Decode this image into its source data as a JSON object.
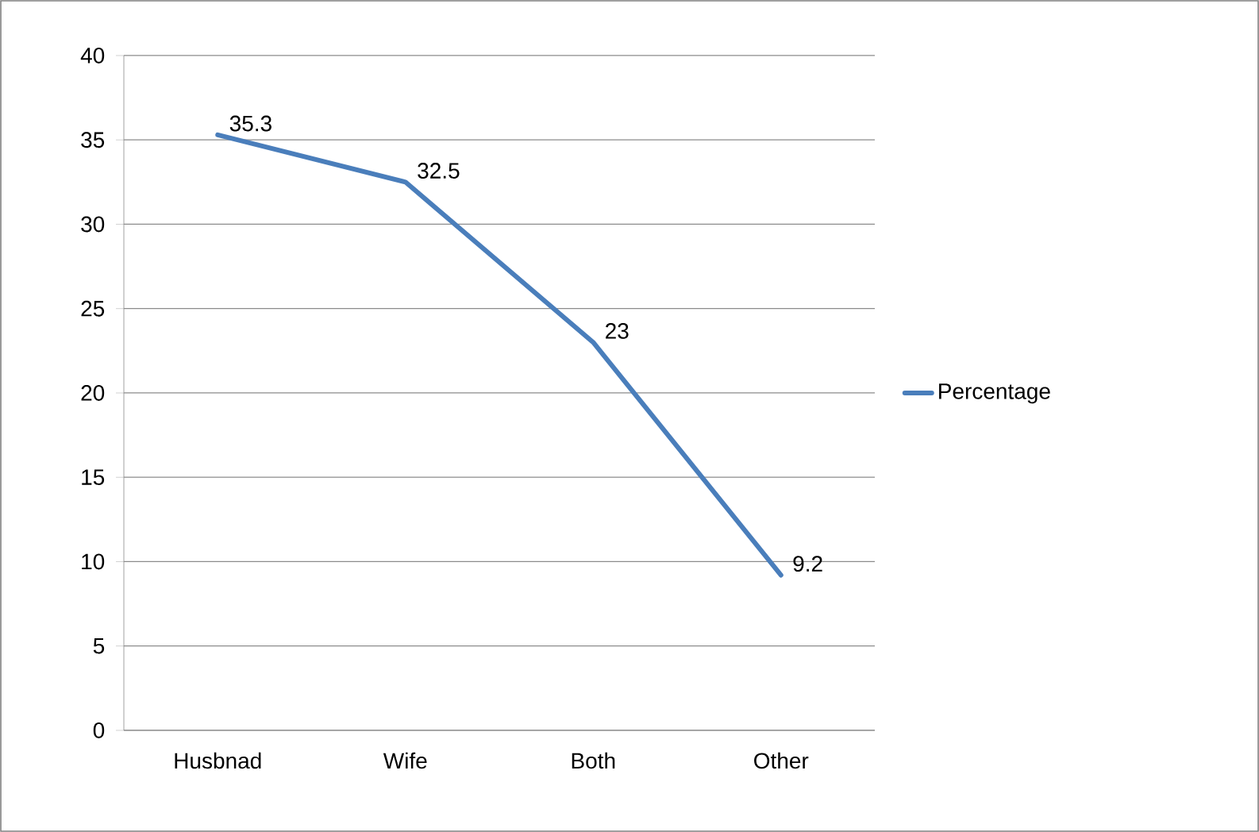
{
  "chart_data": {
    "type": "line",
    "categories": [
      "Husbnad",
      "Wife",
      "Both",
      "Other"
    ],
    "series": [
      {
        "name": "Percentage",
        "color": "#4a7ebb",
        "values": [
          35.3,
          32.5,
          23,
          9.2
        ]
      }
    ],
    "ylim": [
      0,
      40
    ],
    "yticks": [
      0,
      5,
      10,
      15,
      20,
      25,
      30,
      35,
      40
    ],
    "grid": "y",
    "legend": "right",
    "data_labels": true,
    "marker": "none",
    "line_style": "solid"
  }
}
